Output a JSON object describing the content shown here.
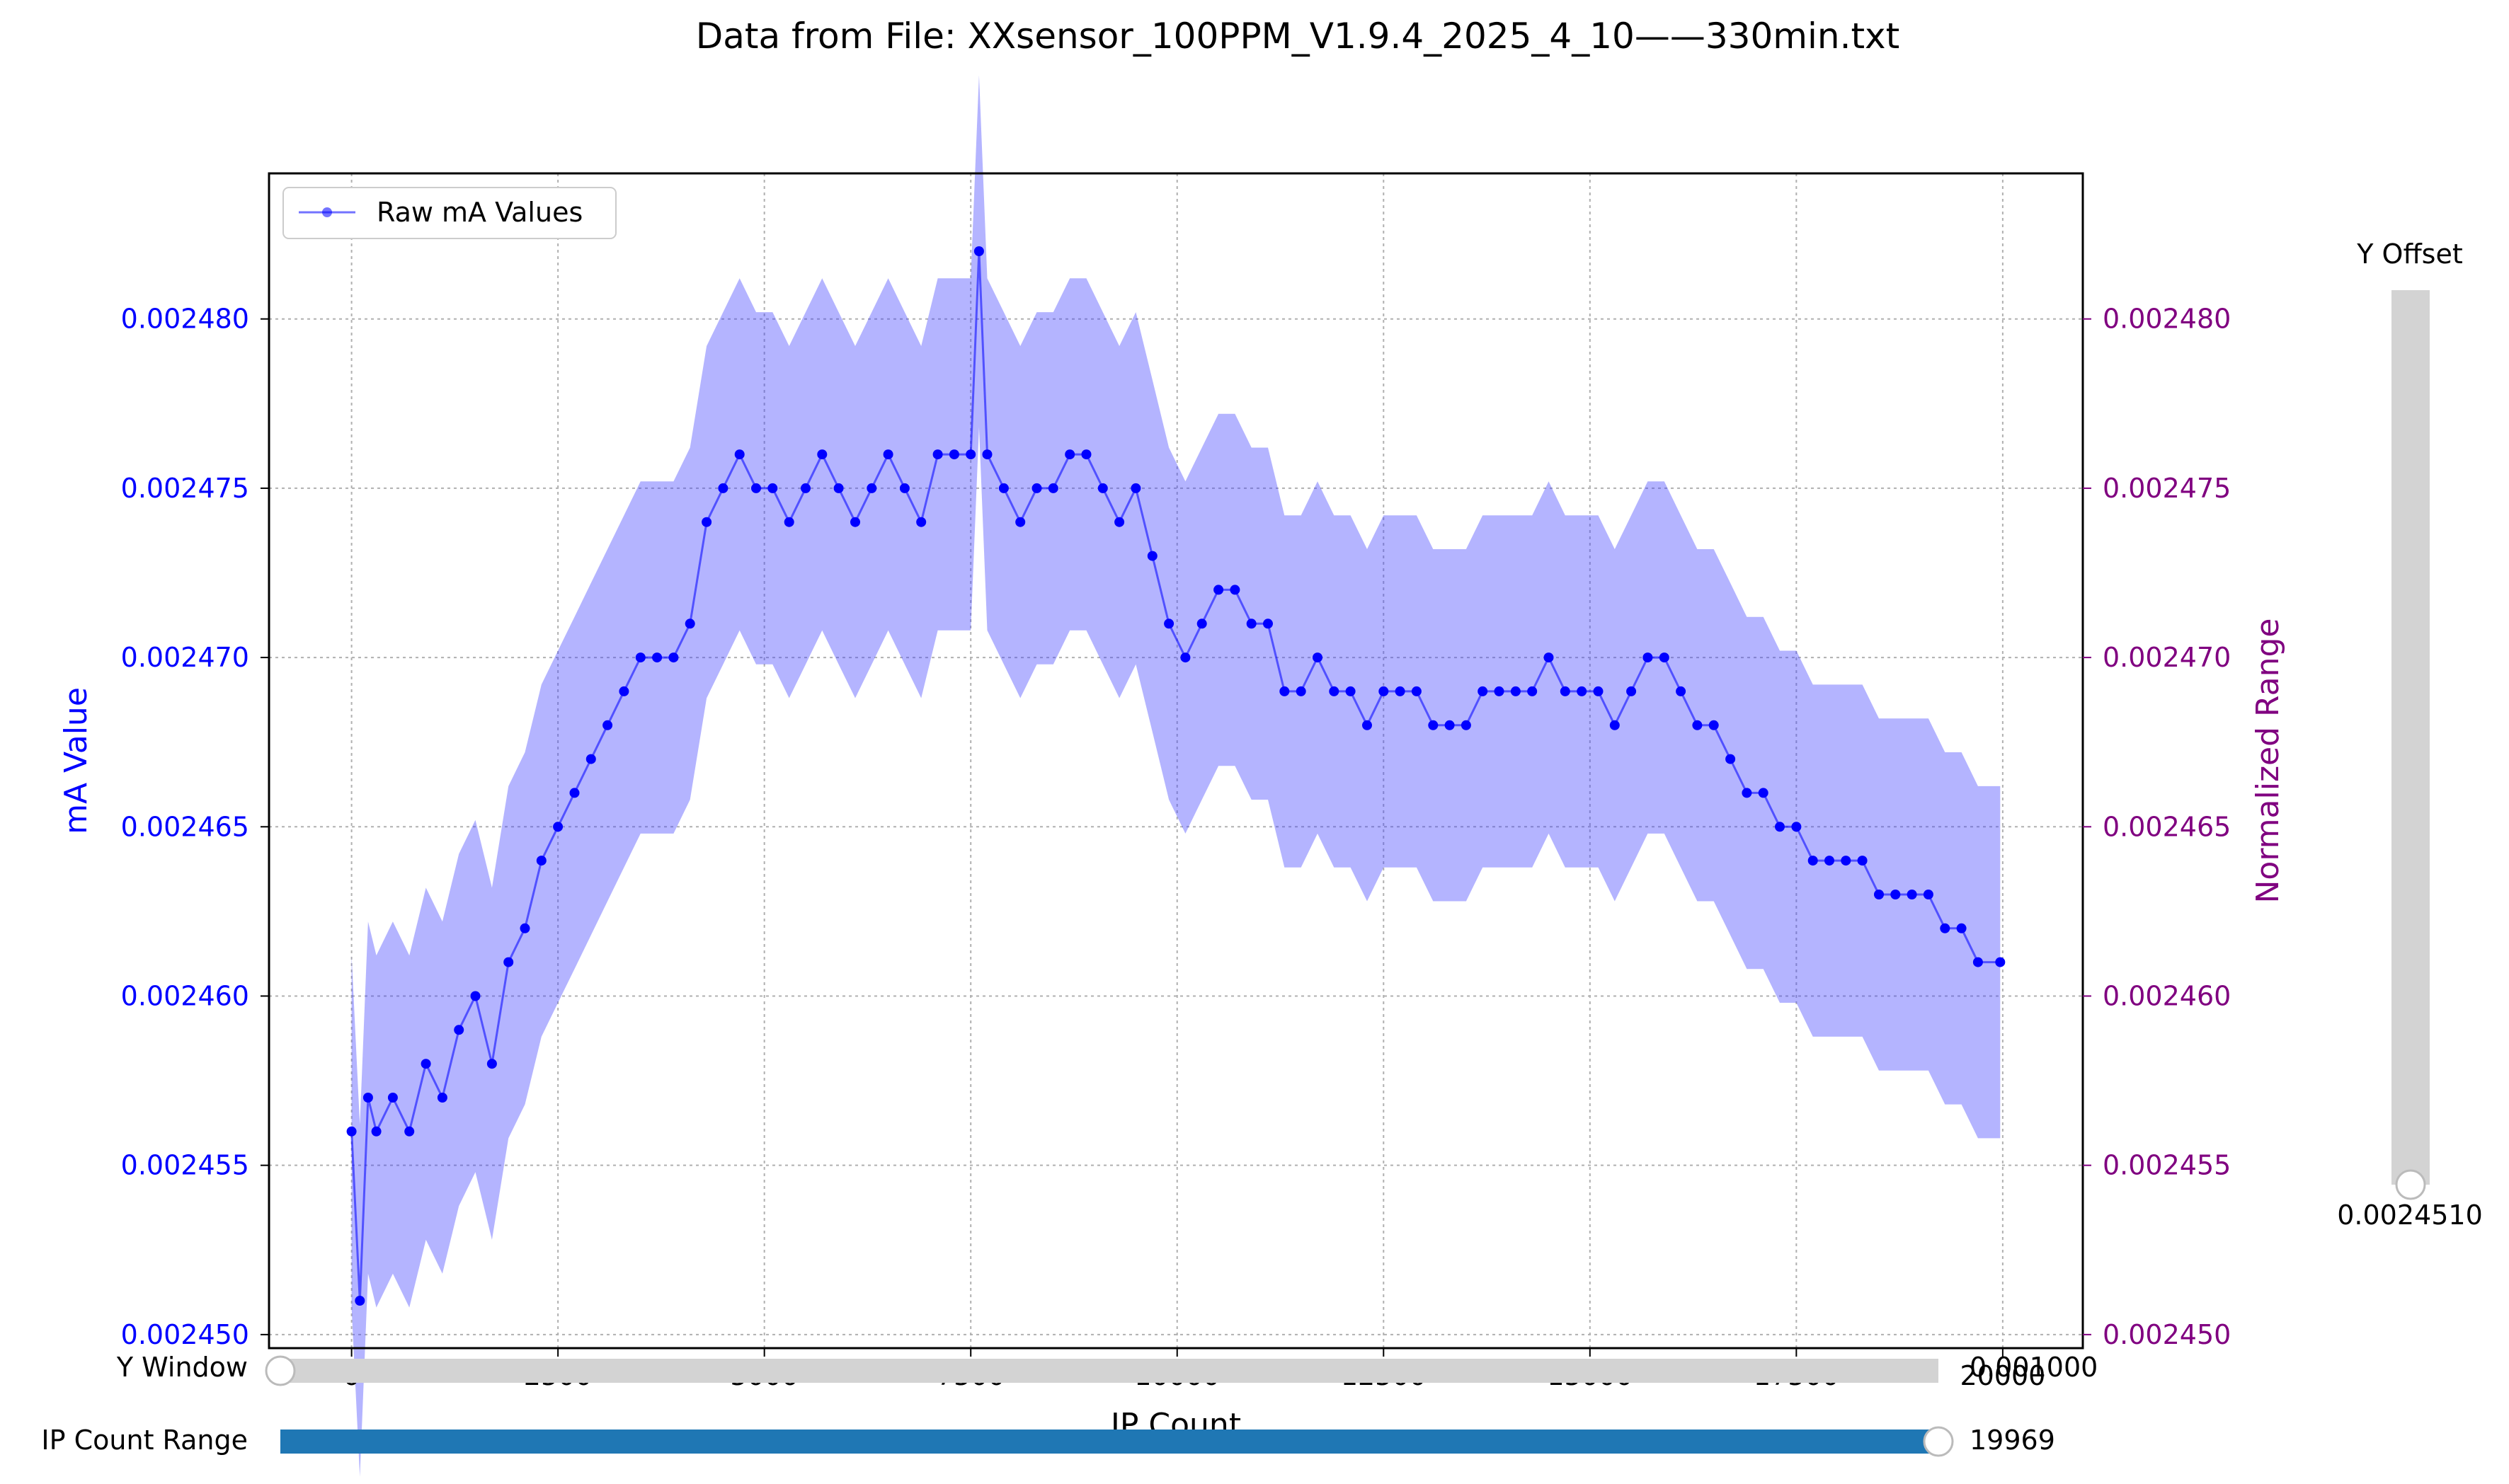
{
  "figure": {
    "title": "Data from File: XXsensor_100PPM_V1.9.4_2025_4_10——330min.txt"
  },
  "chart_data": {
    "type": "line",
    "title": "Data from File: XXsensor_100PPM_V1.9.4_2025_4_10——330min.txt",
    "xlabel": "IP Count",
    "ylabel": "mA Value",
    "ylabel_right": "Normalized Range",
    "xlim": [
      -1000,
      20970
    ],
    "ylim": [
      0.0024496,
      0.0024843
    ],
    "xticks": [
      0,
      2500,
      5000,
      7500,
      10000,
      12500,
      15000,
      17500,
      20000
    ],
    "xtick_labels": [
      "0",
      "2500",
      "5000",
      "7500",
      "10000",
      "12500",
      "15000",
      "17500",
      "20000"
    ],
    "yticks": [
      0.00245,
      0.002455,
      0.00246,
      0.002465,
      0.00247,
      0.002475,
      0.00248
    ],
    "ytick_labels": [
      "0.002450",
      "0.002455",
      "0.002460",
      "0.002465",
      "0.002470",
      "0.002475",
      "0.002480"
    ],
    "grid": true,
    "legend_position": "upper-left",
    "series": [
      {
        "name": "Raw mA Values",
        "color": "#0000ff",
        "x": [
          0,
          100,
          200,
          300,
          500,
          700,
          900,
          1100,
          1300,
          1500,
          1700,
          1900,
          2100,
          2300,
          2500,
          2700,
          2900,
          3100,
          3300,
          3500,
          3700,
          3900,
          4100,
          4300,
          4500,
          4700,
          4900,
          5100,
          5300,
          5500,
          5700,
          5900,
          6100,
          6300,
          6500,
          6700,
          6900,
          7100,
          7300,
          7500,
          7600,
          7700,
          7900,
          8100,
          8300,
          8500,
          8700,
          8900,
          9100,
          9300,
          9500,
          9700,
          9900,
          10100,
          10300,
          10500,
          10700,
          10900,
          11100,
          11300,
          11500,
          11700,
          11900,
          12100,
          12300,
          12500,
          12700,
          12900,
          13100,
          13300,
          13500,
          13700,
          13900,
          14100,
          14300,
          14500,
          14700,
          14900,
          15100,
          15300,
          15500,
          15700,
          15900,
          16100,
          16300,
          16500,
          16700,
          16900,
          17100,
          17300,
          17500,
          17700,
          17900,
          18100,
          18300,
          18500,
          18700,
          18900,
          19100,
          19300,
          19500,
          19700,
          19969
        ],
        "y": [
          0.002456,
          0.002451,
          0.002457,
          0.002456,
          0.002457,
          0.002456,
          0.002458,
          0.002457,
          0.002459,
          0.00246,
          0.002458,
          0.002461,
          0.002462,
          0.002464,
          0.002465,
          0.002466,
          0.002467,
          0.002468,
          0.002469,
          0.00247,
          0.00247,
          0.00247,
          0.002471,
          0.002474,
          0.002475,
          0.002476,
          0.002475,
          0.002475,
          0.002474,
          0.002475,
          0.002476,
          0.002475,
          0.002474,
          0.002475,
          0.002476,
          0.002475,
          0.002474,
          0.002476,
          0.002476,
          0.002476,
          0.002482,
          0.002476,
          0.002475,
          0.002474,
          0.002475,
          0.002475,
          0.002476,
          0.002476,
          0.002475,
          0.002474,
          0.002475,
          0.002473,
          0.002471,
          0.00247,
          0.002471,
          0.002472,
          0.002472,
          0.002471,
          0.002471,
          0.002469,
          0.002469,
          0.00247,
          0.002469,
          0.002469,
          0.002468,
          0.002469,
          0.002469,
          0.002469,
          0.002468,
          0.002468,
          0.002468,
          0.002469,
          0.002469,
          0.002469,
          0.002469,
          0.00247,
          0.002469,
          0.002469,
          0.002469,
          0.002468,
          0.002469,
          0.00247,
          0.00247,
          0.002469,
          0.002468,
          0.002468,
          0.002467,
          0.002466,
          0.002466,
          0.002465,
          0.002465,
          0.002464,
          0.002464,
          0.002464,
          0.002464,
          0.002463,
          0.002463,
          0.002463,
          0.002463,
          0.002462,
          0.002462,
          0.002461,
          0.002461
        ]
      }
    ]
  },
  "y_offset_slider": {
    "label": "Y Offset",
    "value_text": "0.0024510",
    "fraction": 0
  },
  "y_window_slider": {
    "label": "Y Window",
    "value_text": "0.001000",
    "fraction": 0
  },
  "ip_count_slider": {
    "label": "IP Count Range",
    "value_text": "19969",
    "fraction": 1
  },
  "colors": {
    "series": "#0000ff",
    "left_axis": "#0000ff",
    "right_axis": "#800080",
    "slider_track": "#d3d3d3",
    "slider_fill": "#1f77b4"
  }
}
